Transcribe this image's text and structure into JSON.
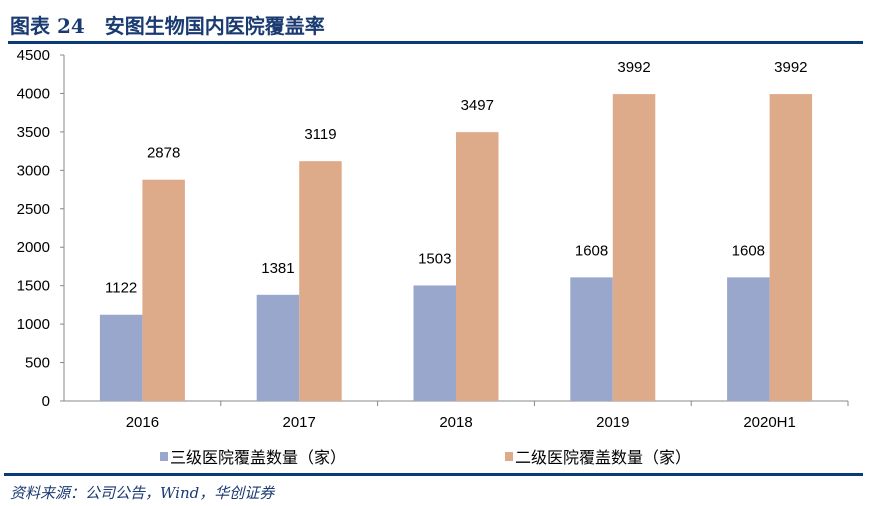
{
  "header": {
    "title": "图表 24　安图生物国内医院覆盖率"
  },
  "footer": {
    "source": "资料来源：公司公告，Wind，华创证券"
  },
  "chart_data": {
    "type": "bar",
    "title": "安图生物国内医院覆盖率",
    "categories": [
      "2016",
      "2017",
      "2018",
      "2019",
      "2020H1"
    ],
    "series": [
      {
        "name": "三级医院覆盖数量（家）",
        "color": "#9AA7CC",
        "values": [
          1122,
          1381,
          1503,
          1608,
          1608
        ]
      },
      {
        "name": "二级医院覆盖数量（家）",
        "color": "#DEAB8A",
        "values": [
          2878,
          3119,
          3497,
          3992,
          3992
        ]
      }
    ],
    "yticks": [
      0,
      500,
      1000,
      1500,
      2000,
      2500,
      3000,
      3500,
      4000,
      4500
    ],
    "ylim": [
      0,
      4500
    ],
    "xlabel": "",
    "ylabel": "",
    "grid": false,
    "legend": "bottom"
  }
}
